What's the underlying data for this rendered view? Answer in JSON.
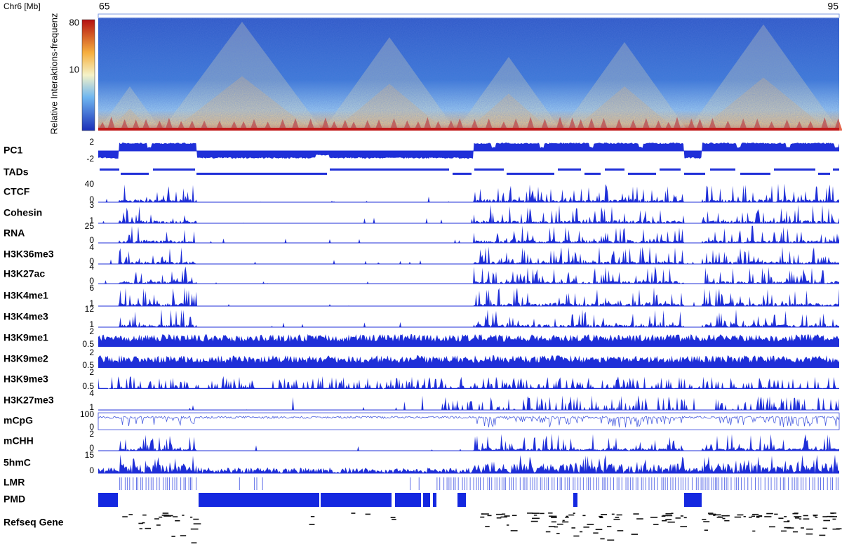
{
  "header": {
    "axis_label": "Chr6 [Mb]",
    "start": "65",
    "end": "95"
  },
  "heatmap": {
    "colorbar_label": "Relative Interaktions-frequenz",
    "colorbar_ticks": [
      80,
      10
    ]
  },
  "tracks": [
    {
      "name": "PC1",
      "scale": [
        2,
        -2
      ]
    },
    {
      "name": "TADs"
    },
    {
      "name": "CTCF",
      "scale": [
        40,
        0
      ]
    },
    {
      "name": "Cohesin",
      "scale": [
        3,
        1
      ]
    },
    {
      "name": "RNA",
      "scale": [
        25,
        0
      ]
    },
    {
      "name": "H3K36me3",
      "scale": [
        4,
        0
      ]
    },
    {
      "name": "H3K27ac",
      "scale": [
        4,
        0
      ]
    },
    {
      "name": "H3K4me1",
      "scale": [
        6,
        1
      ]
    },
    {
      "name": "H3K4me3",
      "scale": [
        12,
        1
      ]
    },
    {
      "name": "H3K9me1",
      "scale": [
        2,
        0.5
      ]
    },
    {
      "name": "H3K9me2",
      "scale": [
        2,
        0.5
      ]
    },
    {
      "name": "H3K9me3",
      "scale": [
        2,
        0.5
      ]
    },
    {
      "name": "H3K27me3",
      "scale": [
        4,
        1
      ]
    },
    {
      "name": "mCpG",
      "scale": [
        100,
        0
      ]
    },
    {
      "name": "mCHH",
      "scale": [
        2,
        0
      ]
    },
    {
      "name": "5hmC",
      "scale": [
        15,
        0
      ]
    },
    {
      "name": "LMR"
    },
    {
      "name": "PMD"
    },
    {
      "name": "Refseq Gene"
    }
  ]
}
